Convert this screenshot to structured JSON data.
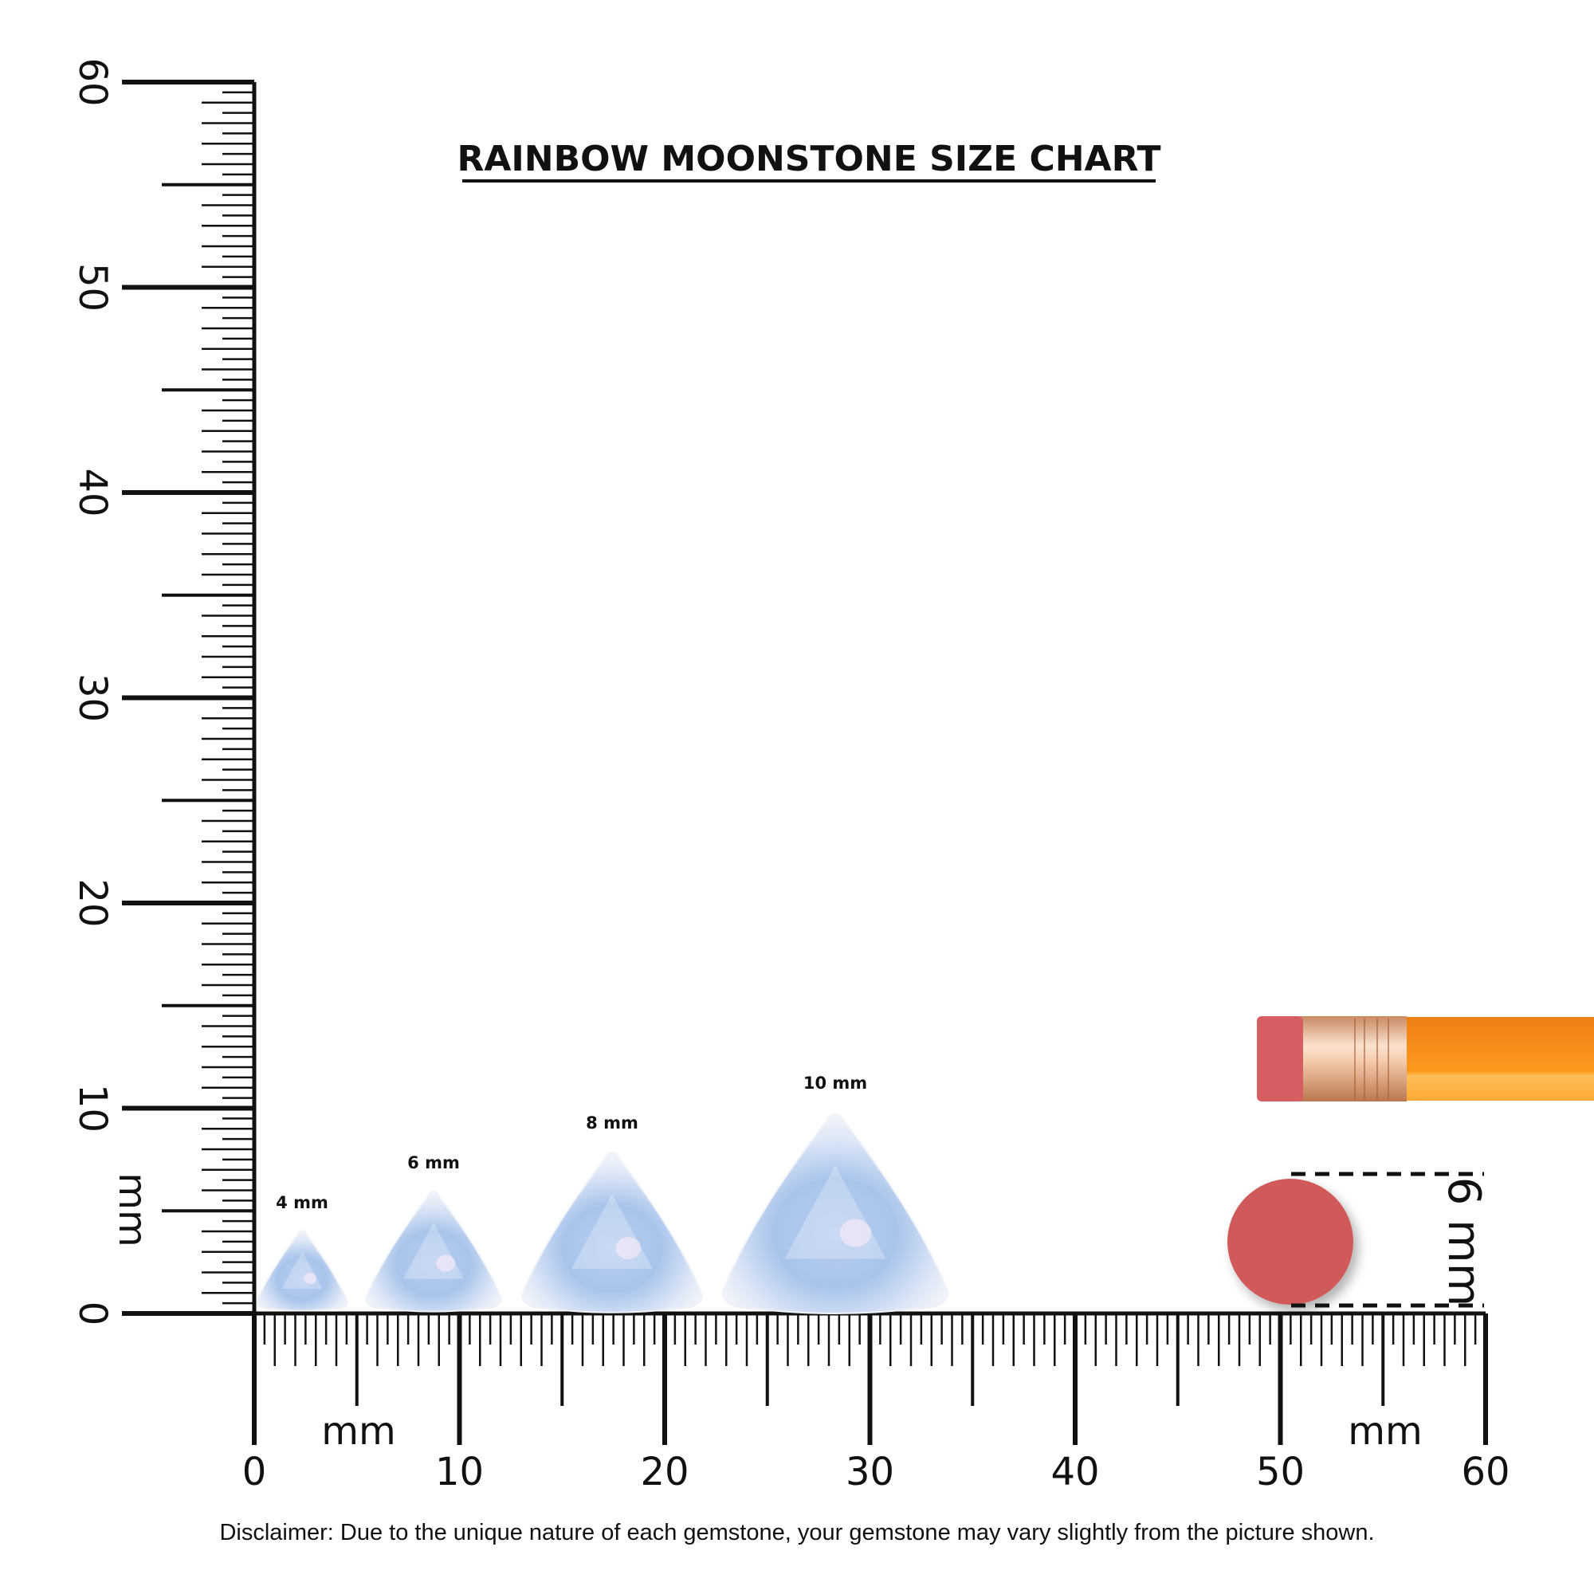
{
  "title": "RAINBOW MOONSTONE SIZE CHART",
  "ruler": {
    "unit_label": "mm",
    "min": 0,
    "max": 60,
    "major_step": 10,
    "labels": [
      "0",
      "10",
      "20",
      "30",
      "40",
      "50",
      "60"
    ]
  },
  "gems": [
    {
      "size_mm": 4,
      "label": "4 mm"
    },
    {
      "size_mm": 6,
      "label": "6 mm"
    },
    {
      "size_mm": 8,
      "label": "8 mm"
    },
    {
      "size_mm": 10,
      "label": "10 mm"
    }
  ],
  "eraser_reference": {
    "label": "6 mm",
    "size_mm": 6
  },
  "disclaimer": "Disclaimer: Due to the unique nature of each gemstone, your gemstone may vary slightly from the picture shown.",
  "colors": {
    "ink": "#111111",
    "eraser": "#d05a5a",
    "pencil_body": "#f7931e",
    "ferrule": "#e8b48f",
    "gem_blue": "#a9c4ec"
  }
}
